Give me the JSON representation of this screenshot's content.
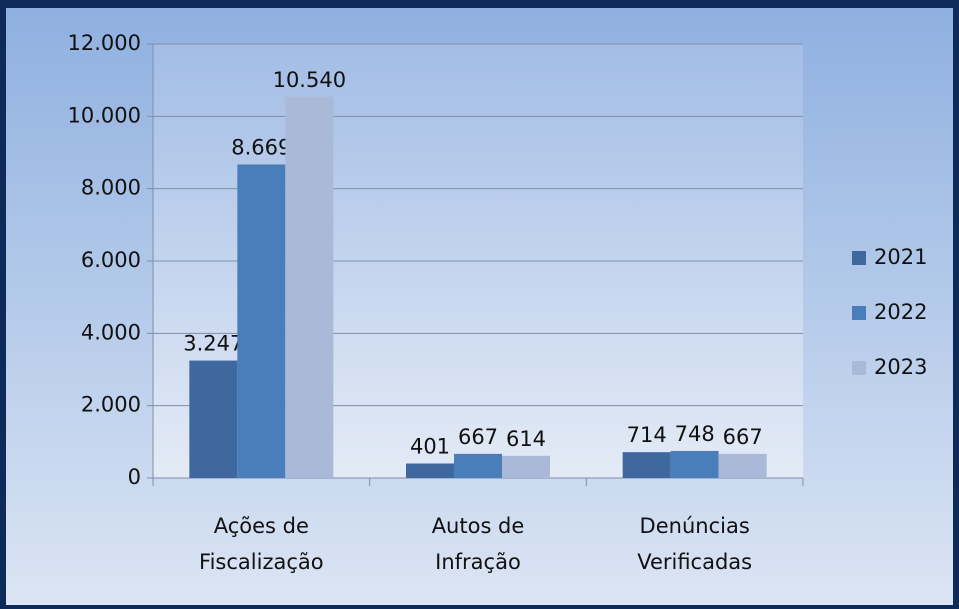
{
  "chart_data": {
    "type": "bar",
    "categories": [
      [
        "Ações de",
        "Fiscalização"
      ],
      [
        "Autos de",
        "Infração"
      ],
      [
        "Denúncias",
        "Verificadas"
      ]
    ],
    "series": [
      {
        "name": "2021",
        "color": "#3f689f",
        "values": [
          3247,
          401,
          714
        ],
        "value_labels": [
          "3.247",
          "401",
          "714"
        ]
      },
      {
        "name": "2022",
        "color": "#4a7ebb",
        "values": [
          8669,
          667,
          748
        ],
        "value_labels": [
          "8.669",
          "667",
          "748"
        ]
      },
      {
        "name": "2023",
        "color": "#aab9d8",
        "values": [
          10540,
          614,
          667
        ],
        "value_labels": [
          "10.540",
          "614",
          "667"
        ]
      }
    ],
    "ylim": [
      0,
      12000
    ],
    "yticks": [
      0,
      {
        "value": 2000,
        "label": "2.000"
      },
      {
        "value": 4000,
        "label": "4.000"
      },
      {
        "value": 6000,
        "label": "6.000"
      },
      {
        "value": 8000,
        "label": "8.000"
      },
      {
        "value": 10000,
        "label": "10.000"
      },
      {
        "value": 12000,
        "label": "12.000"
      }
    ],
    "grid": true,
    "legend": "right"
  }
}
